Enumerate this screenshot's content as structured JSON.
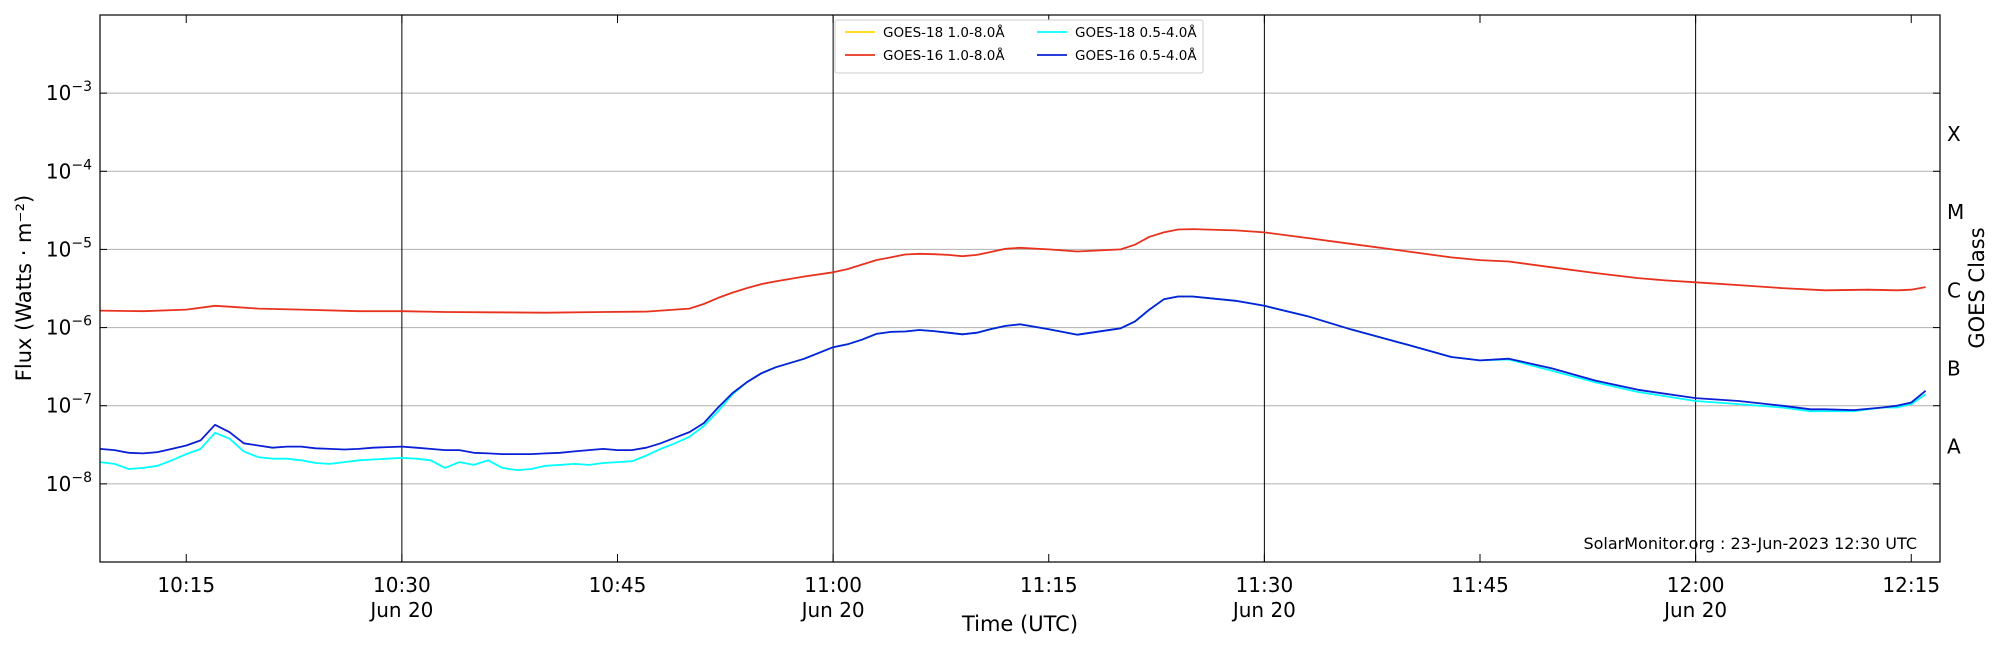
{
  "chart_data": {
    "type": "line",
    "title": "",
    "xlabel": "Time (UTC)",
    "ylabel": "Flux (Watts · m⁻²)",
    "right_ylabel": "GOES Class",
    "y_scale": "log",
    "ylim": [
      1e-09,
      0.01
    ],
    "xlim": [
      "2023-06-20 10:09",
      "2023-06-20 12:17"
    ],
    "grid": "horizontal",
    "legend_position": "top-center",
    "y_ticks": [
      {
        "value": 1e-08,
        "base": "10",
        "exp": "−8"
      },
      {
        "value": 1e-07,
        "base": "10",
        "exp": "−7"
      },
      {
        "value": 1e-06,
        "base": "10",
        "exp": "−6"
      },
      {
        "value": 1e-05,
        "base": "10",
        "exp": "−5"
      },
      {
        "value": 0.0001,
        "base": "10",
        "exp": "−4"
      },
      {
        "value": 0.001,
        "base": "10",
        "exp": "−3"
      }
    ],
    "x_ticks": [
      {
        "time": "10:15",
        "label": "10:15",
        "sub": ""
      },
      {
        "time": "10:30",
        "label": "10:30",
        "sub": "Jun 20"
      },
      {
        "time": "10:45",
        "label": "10:45",
        "sub": ""
      },
      {
        "time": "11:00",
        "label": "11:00",
        "sub": "Jun 20"
      },
      {
        "time": "11:15",
        "label": "11:15",
        "sub": ""
      },
      {
        "time": "11:30",
        "label": "11:30",
        "sub": "Jun 20"
      },
      {
        "time": "11:45",
        "label": "11:45",
        "sub": ""
      },
      {
        "time": "12:00",
        "label": "12:00",
        "sub": "Jun 20"
      },
      {
        "time": "12:15",
        "label": "12:15",
        "sub": ""
      }
    ],
    "vertical_lines": [
      "10:30",
      "11:00",
      "11:30",
      "12:00"
    ],
    "goes_classes": [
      {
        "label": "A",
        "value": 3e-08
      },
      {
        "label": "B",
        "value": 3e-07
      },
      {
        "label": "C",
        "value": 3e-06
      },
      {
        "label": "M",
        "value": 3e-05
      },
      {
        "label": "X",
        "value": 0.0003
      }
    ],
    "series": [
      {
        "name": "GOES-18 1.0-8.0Å",
        "color": "#ffd700",
        "x": [],
        "values": []
      },
      {
        "name": "GOES-16 1.0-8.0Å",
        "color": "#e8321e",
        "x": [
          "10:09",
          "10:12",
          "10:15",
          "10:17",
          "10:18",
          "10:20",
          "10:23",
          "10:27",
          "10:30",
          "10:33",
          "10:36",
          "10:40",
          "10:44",
          "10:47",
          "10:50",
          "10:51",
          "10:52",
          "10:53",
          "10:54",
          "10:55",
          "10:56",
          "10:58",
          "11:00",
          "11:01",
          "11:02",
          "11:03",
          "11:04",
          "11:05",
          "11:06",
          "11:07",
          "11:08",
          "11:09",
          "11:10",
          "11:11",
          "11:12",
          "11:13",
          "11:15",
          "11:17",
          "11:20",
          "11:21",
          "11:22",
          "11:23",
          "11:24",
          "11:25",
          "11:28",
          "11:30",
          "11:33",
          "11:36",
          "11:40",
          "11:43",
          "11:45",
          "11:47",
          "11:50",
          "11:53",
          "11:56",
          "11:58",
          "12:00",
          "12:03",
          "12:06",
          "12:09",
          "12:12",
          "12:14",
          "12:15",
          "12:16"
        ],
        "values": [
          1.65e-06,
          1.62e-06,
          1.7e-06,
          1.9e-06,
          1.85e-06,
          1.75e-06,
          1.7e-06,
          1.62e-06,
          1.62e-06,
          1.58e-06,
          1.57e-06,
          1.55e-06,
          1.58e-06,
          1.6e-06,
          1.75e-06,
          2e-06,
          2.4e-06,
          2.8e-06,
          3.2e-06,
          3.6e-06,
          3.9e-06,
          4.5e-06,
          5.1e-06,
          5.6e-06,
          6.4e-06,
          7.3e-06,
          7.9e-06,
          8.6e-06,
          8.8e-06,
          8.7e-06,
          8.5e-06,
          8.2e-06,
          8.5e-06,
          9.3e-06,
          1.02e-05,
          1.05e-05,
          1e-05,
          9.4e-06,
          1e-05,
          1.15e-05,
          1.45e-05,
          1.65e-05,
          1.8e-05,
          1.82e-05,
          1.75e-05,
          1.65e-05,
          1.4e-05,
          1.18e-05,
          9.4e-06,
          7.9e-06,
          7.3e-06,
          7e-06,
          5.9e-06,
          5e-06,
          4.3e-06,
          4e-06,
          3.8e-06,
          3.5e-06,
          3.2e-06,
          3e-06,
          3.05e-06,
          3e-06,
          3.05e-06,
          3.3e-06
        ]
      },
      {
        "name": "GOES-18 0.5-4.0Å",
        "color": "#00ffff",
        "x": [
          "10:09",
          "10:10",
          "10:11",
          "10:12",
          "10:13",
          "10:14",
          "10:15",
          "10:16",
          "10:17",
          "10:18",
          "10:19",
          "10:20",
          "10:21",
          "10:22",
          "10:23",
          "10:24",
          "10:25",
          "10:26",
          "10:27",
          "10:28",
          "10:29",
          "10:30",
          "10:31",
          "10:32",
          "10:33",
          "10:34",
          "10:35",
          "10:36",
          "10:37",
          "10:38",
          "10:39",
          "10:40",
          "10:41",
          "10:42",
          "10:43",
          "10:44",
          "10:45",
          "10:46",
          "10:47",
          "10:48",
          "10:49",
          "10:50",
          "10:51",
          "10:52",
          "10:53",
          "10:54",
          "10:55",
          "10:56",
          "10:58",
          "11:00",
          "11:01",
          "11:02",
          "11:03",
          "11:04",
          "11:05",
          "11:06",
          "11:07",
          "11:08",
          "11:09",
          "11:10",
          "11:11",
          "11:12",
          "11:13",
          "11:15",
          "11:17",
          "11:20",
          "11:21",
          "11:22",
          "11:23",
          "11:24",
          "11:25",
          "11:28",
          "11:30",
          "11:33",
          "11:36",
          "11:40",
          "11:43",
          "11:45",
          "11:47",
          "11:50",
          "11:53",
          "11:56",
          "12:00",
          "12:03",
          "12:06",
          "12:08",
          "12:09",
          "12:11",
          "12:13",
          "12:14",
          "12:15",
          "12:16"
        ],
        "values": [
          1.9e-08,
          1.8e-08,
          1.55e-08,
          1.6e-08,
          1.7e-08,
          2e-08,
          2.4e-08,
          2.8e-08,
          4.5e-08,
          3.8e-08,
          2.6e-08,
          2.2e-08,
          2.1e-08,
          2.1e-08,
          2e-08,
          1.85e-08,
          1.8e-08,
          1.9e-08,
          2e-08,
          2.05e-08,
          2.1e-08,
          2.15e-08,
          2.1e-08,
          2e-08,
          1.6e-08,
          1.9e-08,
          1.75e-08,
          2e-08,
          1.6e-08,
          1.5e-08,
          1.55e-08,
          1.7e-08,
          1.75e-08,
          1.8e-08,
          1.75e-08,
          1.85e-08,
          1.9e-08,
          1.95e-08,
          2.3e-08,
          2.8e-08,
          3.3e-08,
          4e-08,
          5.5e-08,
          8.5e-08,
          1.4e-07,
          2e-07,
          2.6e-07,
          3.1e-07,
          4e-07,
          5.6e-07,
          6.1e-07,
          7e-07,
          8.3e-07,
          8.8e-07,
          8.9e-07,
          9.3e-07,
          9e-07,
          8.6e-07,
          8.2e-07,
          8.6e-07,
          9.6e-07,
          1.05e-06,
          1.1e-06,
          9.5e-07,
          8.1e-07,
          9.8e-07,
          1.2e-06,
          1.7e-06,
          2.3e-06,
          2.5e-06,
          2.5e-06,
          2.2e-06,
          1.9e-06,
          1.4e-06,
          9.5e-07,
          6e-07,
          4.2e-07,
          3.8e-07,
          3.9e-07,
          2.8e-07,
          2e-07,
          1.5e-07,
          1.15e-07,
          1.05e-07,
          9.5e-08,
          8.5e-08,
          8.5e-08,
          8.5e-08,
          9.5e-08,
          9.5e-08,
          1.05e-07,
          1.4e-07
        ]
      },
      {
        "name": "GOES-16 0.5-4.0Å",
        "color": "#0a1fd6",
        "x": [
          "10:09",
          "10:10",
          "10:11",
          "10:12",
          "10:13",
          "10:14",
          "10:15",
          "10:16",
          "10:17",
          "10:18",
          "10:19",
          "10:20",
          "10:21",
          "10:22",
          "10:23",
          "10:24",
          "10:25",
          "10:26",
          "10:27",
          "10:28",
          "10:29",
          "10:30",
          "10:31",
          "10:32",
          "10:33",
          "10:34",
          "10:35",
          "10:36",
          "10:37",
          "10:38",
          "10:39",
          "10:40",
          "10:41",
          "10:42",
          "10:43",
          "10:44",
          "10:45",
          "10:46",
          "10:47",
          "10:48",
          "10:49",
          "10:50",
          "10:51",
          "10:52",
          "10:53",
          "10:54",
          "10:55",
          "10:56",
          "10:58",
          "11:00",
          "11:01",
          "11:02",
          "11:03",
          "11:04",
          "11:05",
          "11:06",
          "11:07",
          "11:08",
          "11:09",
          "11:10",
          "11:11",
          "11:12",
          "11:13",
          "11:15",
          "11:17",
          "11:20",
          "11:21",
          "11:22",
          "11:23",
          "11:24",
          "11:25",
          "11:28",
          "11:30",
          "11:33",
          "11:36",
          "11:40",
          "11:43",
          "11:45",
          "11:47",
          "11:50",
          "11:53",
          "11:56",
          "12:00",
          "12:03",
          "12:06",
          "12:08",
          "12:09",
          "12:11",
          "12:13",
          "12:14",
          "12:15",
          "12:16"
        ],
        "values": [
          2.8e-08,
          2.7e-08,
          2.5e-08,
          2.45e-08,
          2.55e-08,
          2.8e-08,
          3.1e-08,
          3.6e-08,
          5.7e-08,
          4.6e-08,
          3.3e-08,
          3.1e-08,
          2.9e-08,
          3e-08,
          3e-08,
          2.85e-08,
          2.8e-08,
          2.75e-08,
          2.8e-08,
          2.9e-08,
          2.95e-08,
          3e-08,
          2.9e-08,
          2.8e-08,
          2.7e-08,
          2.7e-08,
          2.5e-08,
          2.45e-08,
          2.4e-08,
          2.4e-08,
          2.4e-08,
          2.45e-08,
          2.5e-08,
          2.6e-08,
          2.7e-08,
          2.8e-08,
          2.7e-08,
          2.7e-08,
          2.9e-08,
          3.3e-08,
          3.9e-08,
          4.6e-08,
          6e-08,
          9.5e-08,
          1.45e-07,
          2e-07,
          2.6e-07,
          3.1e-07,
          4e-07,
          5.6e-07,
          6.1e-07,
          7e-07,
          8.3e-07,
          8.8e-07,
          8.9e-07,
          9.3e-07,
          9e-07,
          8.6e-07,
          8.2e-07,
          8.6e-07,
          9.6e-07,
          1.05e-06,
          1.1e-06,
          9.5e-07,
          8.1e-07,
          9.8e-07,
          1.2e-06,
          1.7e-06,
          2.3e-06,
          2.5e-06,
          2.5e-06,
          2.2e-06,
          1.9e-06,
          1.4e-06,
          9.5e-07,
          6e-07,
          4.2e-07,
          3.8e-07,
          4e-07,
          3e-07,
          2.1e-07,
          1.6e-07,
          1.25e-07,
          1.15e-07,
          1e-07,
          9e-08,
          9e-08,
          8.8e-08,
          9.5e-08,
          1e-07,
          1.1e-07,
          1.55e-07
        ]
      }
    ]
  },
  "credit": "SolarMonitor.org : 23-Jun-2023 12:30 UTC"
}
